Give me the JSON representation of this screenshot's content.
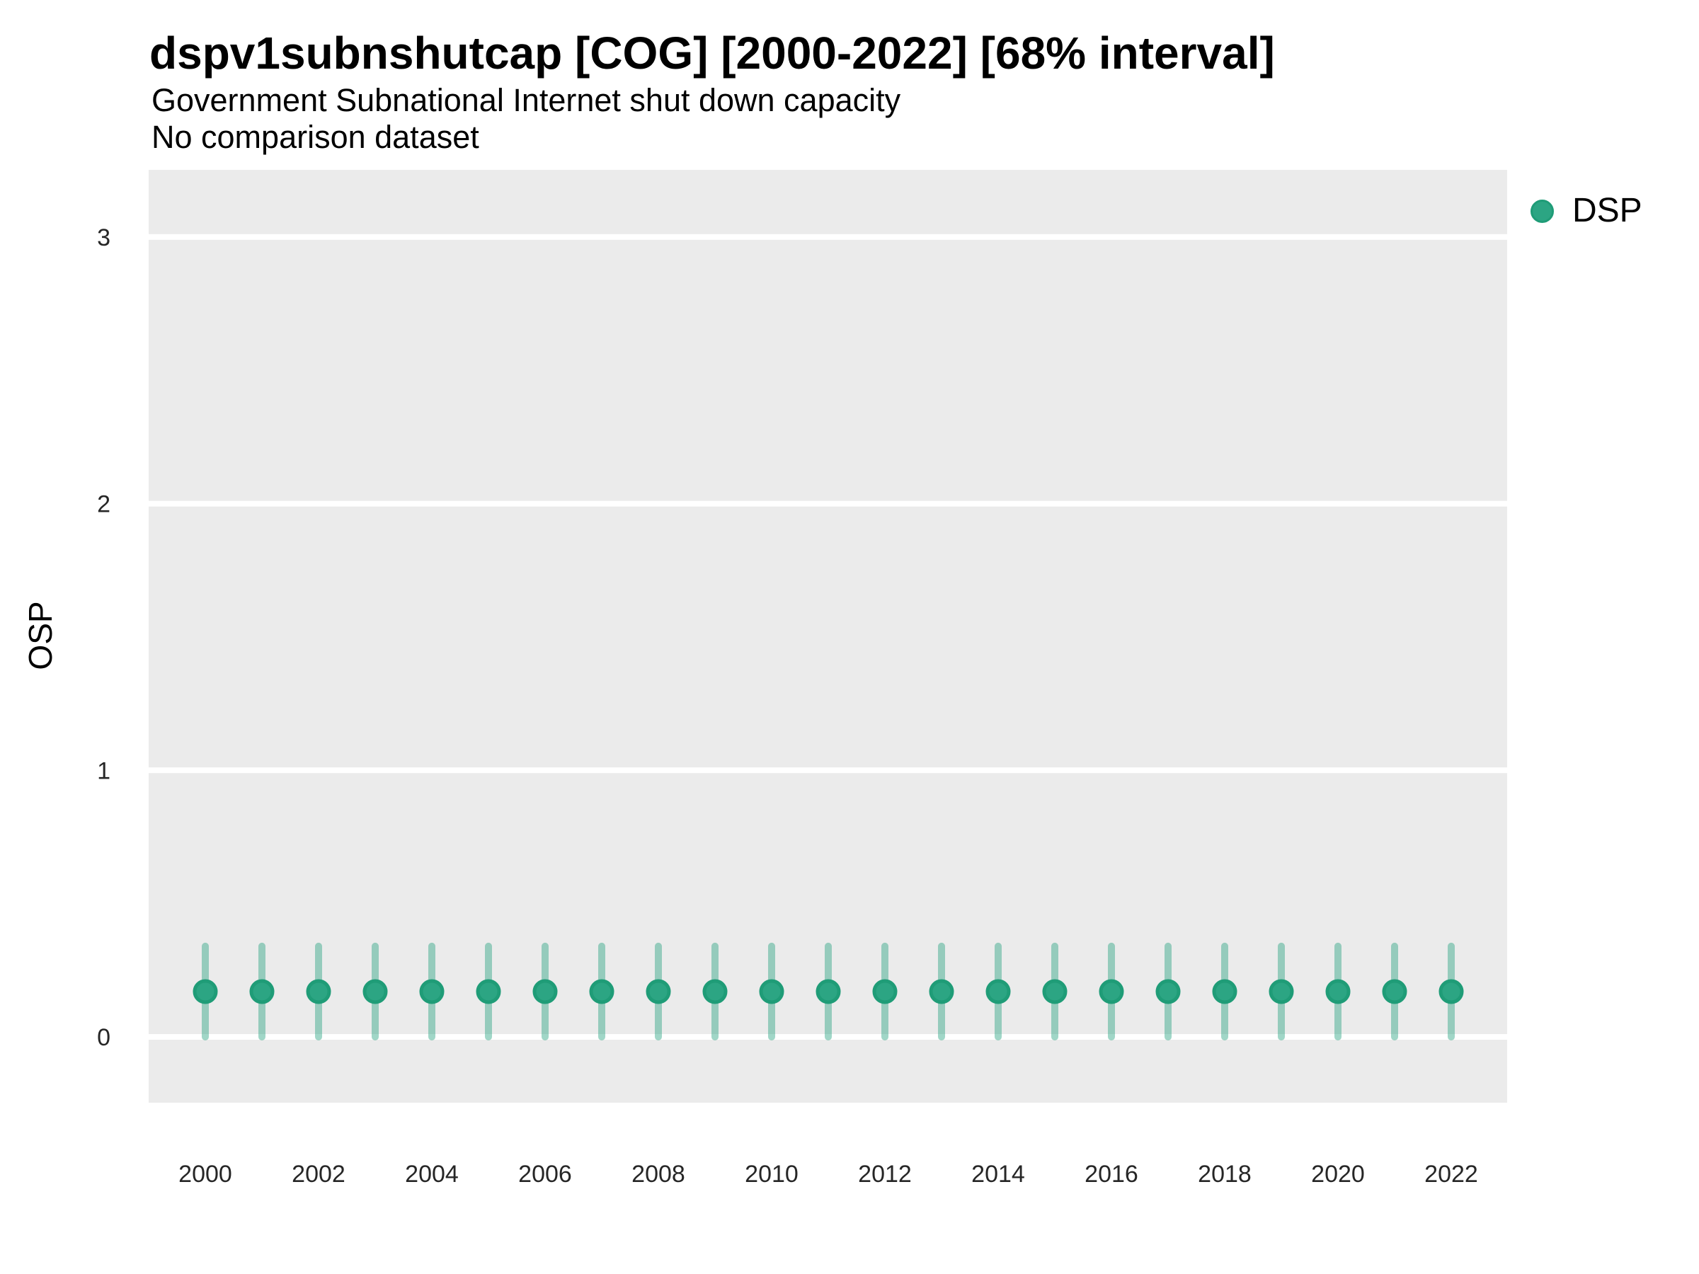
{
  "chart_data": {
    "type": "scatter",
    "subtype": "pointrange",
    "title": "dspv1subnshutcap [COG] [2000-2022] [68% interval]",
    "subtitle": "Government Subnational Internet shut down capacity",
    "note": "No comparison dataset",
    "xlabel": "",
    "ylabel": "OSP",
    "interval": "68%",
    "ylim": [
      -0.25,
      3.25
    ],
    "y_ticks": [
      0,
      1,
      2,
      3
    ],
    "x_ticks": [
      2000,
      2002,
      2004,
      2006,
      2008,
      2010,
      2012,
      2014,
      2016,
      2018,
      2020,
      2022
    ],
    "grid": "horizontal major white gridlines on grey panel, no vertical gridlines",
    "legend_position": "top-right outside panel",
    "series": [
      {
        "name": "DSP",
        "x": [
          2000,
          2001,
          2002,
          2003,
          2004,
          2005,
          2006,
          2007,
          2008,
          2009,
          2010,
          2011,
          2012,
          2013,
          2014,
          2015,
          2016,
          2017,
          2018,
          2019,
          2020,
          2021,
          2022
        ],
        "y": [
          0.17,
          0.17,
          0.17,
          0.17,
          0.17,
          0.17,
          0.17,
          0.17,
          0.17,
          0.17,
          0.17,
          0.17,
          0.17,
          0.17,
          0.17,
          0.17,
          0.17,
          0.17,
          0.17,
          0.17,
          0.17,
          0.17,
          0.17
        ],
        "low": [
          0.0,
          0.0,
          0.0,
          0.0,
          0.0,
          0.0,
          0.0,
          0.0,
          0.0,
          0.0,
          0.0,
          0.0,
          0.0,
          0.0,
          0.0,
          0.0,
          0.0,
          0.0,
          0.0,
          0.0,
          0.0,
          0.0,
          0.0
        ],
        "high": [
          0.34,
          0.34,
          0.34,
          0.34,
          0.34,
          0.34,
          0.34,
          0.34,
          0.34,
          0.34,
          0.34,
          0.34,
          0.34,
          0.34,
          0.34,
          0.34,
          0.34,
          0.34,
          0.34,
          0.34,
          0.34,
          0.34,
          0.34
        ]
      }
    ]
  },
  "legend": {
    "items": [
      {
        "label": "DSP"
      }
    ]
  },
  "colors": {
    "point_fill": "#2CA583",
    "point_stroke": "#1F9C77",
    "interval_bar": "rgba(44,165,131,0.45)",
    "panel_background": "#EBEBEB",
    "gridline": "#FFFFFF",
    "title_text": "#000000",
    "axis_text": "#262626"
  }
}
